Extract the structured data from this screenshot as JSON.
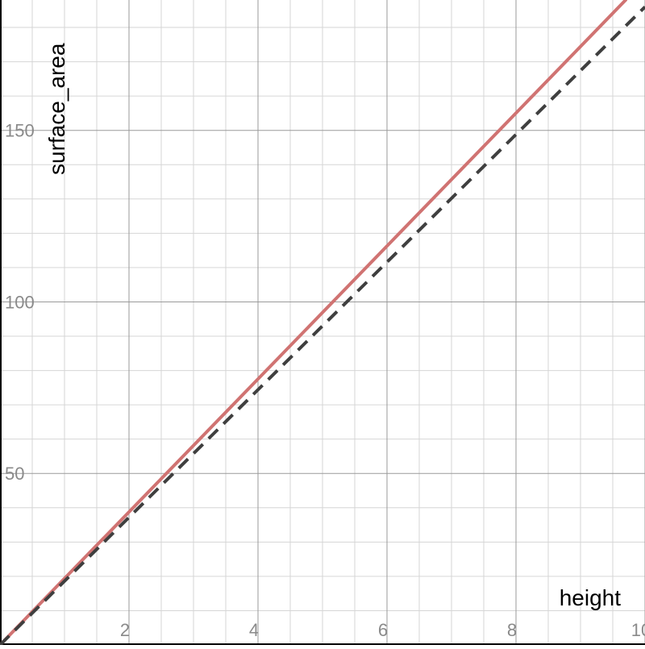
{
  "chart_data": {
    "type": "line",
    "title": "",
    "xlabel": "height",
    "ylabel": "surface_area",
    "xlim": [
      0,
      10
    ],
    "ylim": [
      0,
      188
    ],
    "grid": true,
    "x_major_ticks": [
      2,
      4,
      6,
      8,
      10
    ],
    "y_major_ticks": [
      50,
      100,
      150
    ],
    "x_tick_labels": [
      "2",
      "4",
      "6",
      "8",
      "10"
    ],
    "y_tick_labels": [
      "50",
      "100",
      "150"
    ],
    "series": [
      {
        "style": "solid",
        "color": "#d07372",
        "x": [
          0,
          9.7
        ],
        "y": [
          0,
          188
        ]
      },
      {
        "style": "dashed",
        "color": "#3f3f3f",
        "x": [
          0,
          10
        ],
        "y": [
          0,
          186
        ]
      }
    ]
  }
}
